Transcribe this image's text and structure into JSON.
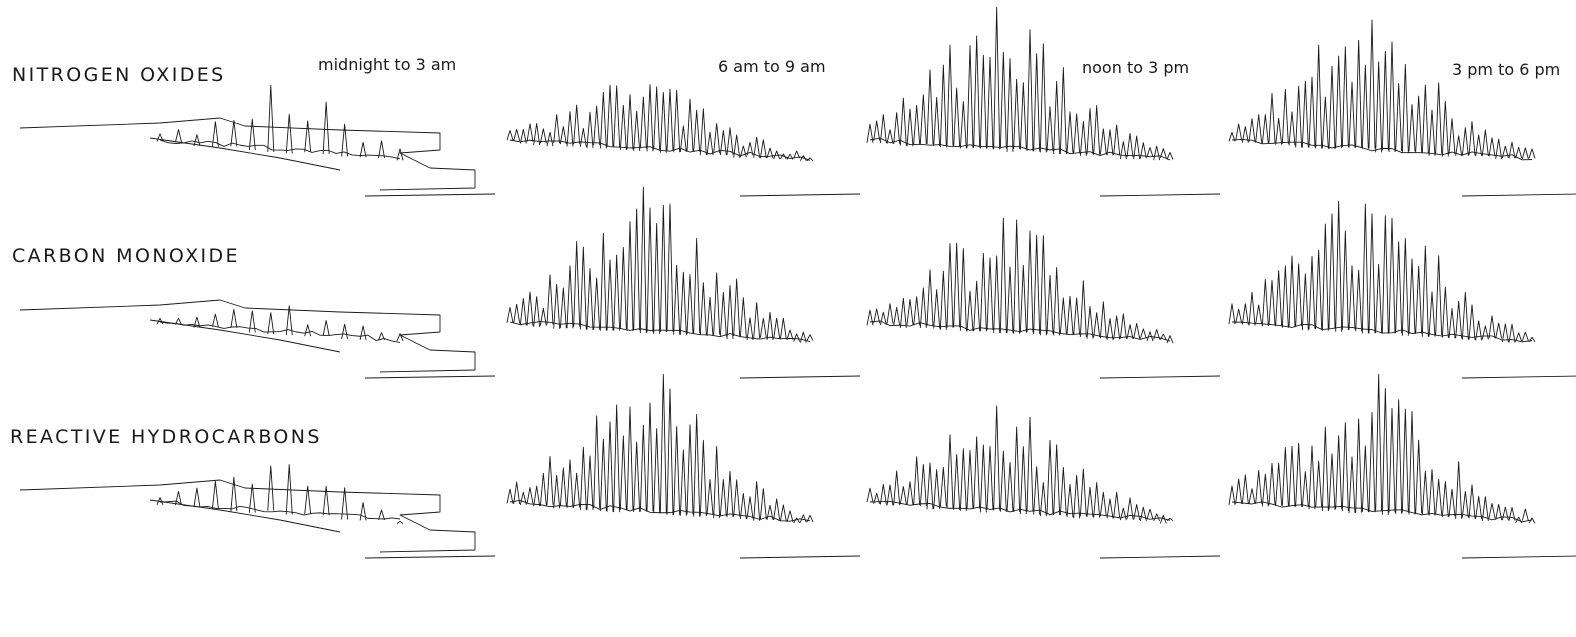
{
  "chart_data": {
    "type": "surface-small-multiples",
    "rows": [
      "NITROGEN OXIDES",
      "CARBON MONOXIDE",
      "REACTIVE HYDROCARBONS"
    ],
    "columns": [
      "midnight to 3 am",
      "6 am to 9 am",
      "noon to 3 pm",
      "3 pm to 6 pm"
    ],
    "series": [
      {
        "pollutant": "NITROGEN OXIDES",
        "relative_peak_height": [
          0.55,
          0.45,
          0.95,
          0.92
        ]
      },
      {
        "pollutant": "CARBON MONOXIDE",
        "relative_peak_height": [
          0.2,
          0.95,
          0.8,
          0.98
        ]
      },
      {
        "pollutant": "REACTIVE HYDROCARBONS",
        "relative_peak_height": [
          0.45,
          0.95,
          0.75,
          0.95
        ]
      }
    ],
    "grid": false
  }
}
